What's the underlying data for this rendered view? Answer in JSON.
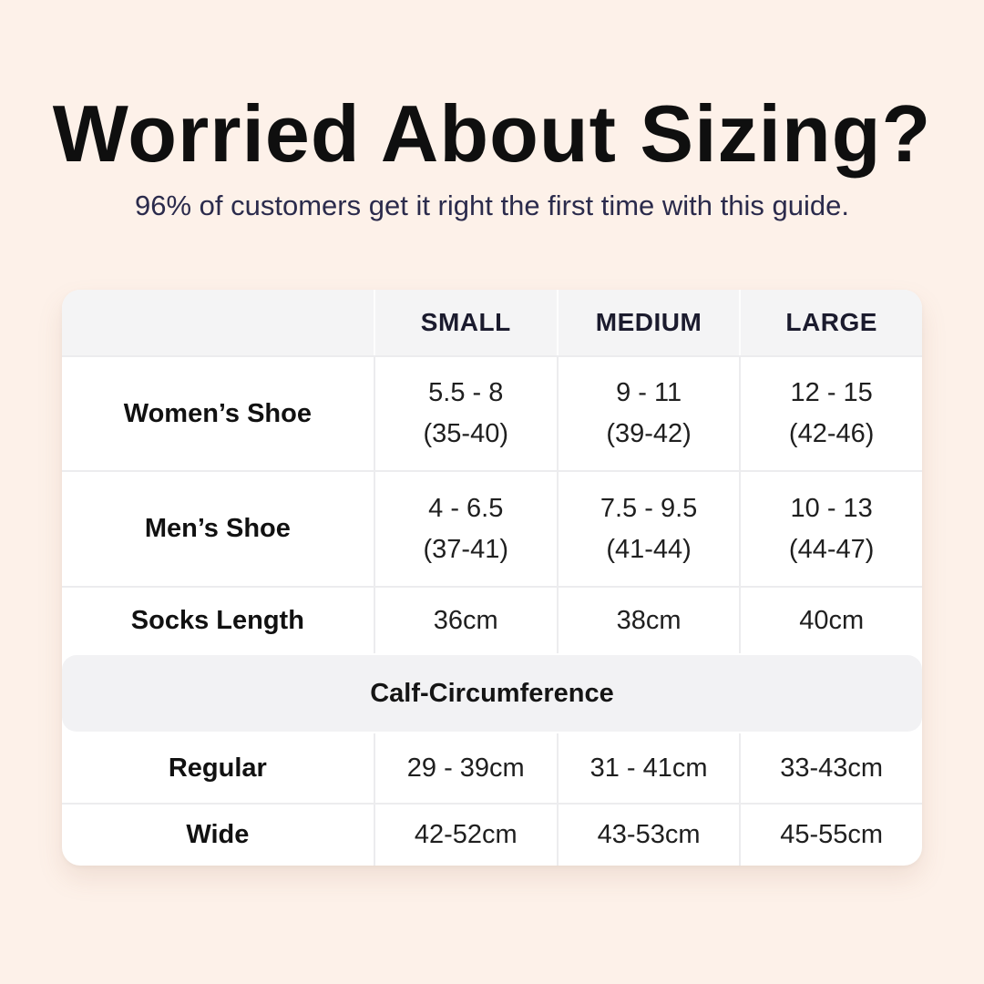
{
  "header": {
    "title": "Worried About Sizing?",
    "subtitle": "96% of customers get it right the first time with this guide."
  },
  "table": {
    "columns": [
      "",
      "SMALL",
      "MEDIUM",
      "LARGE"
    ],
    "rows": [
      {
        "label": "Women’s Shoe",
        "values": [
          "5.5 - 8\n(35-40)",
          "9 - 11\n(39-42)",
          "12 - 15\n(42-46)"
        ]
      },
      {
        "label": "Men’s Shoe",
        "values": [
          "4 - 6.5\n(37-41)",
          "7.5 - 9.5\n(41-44)",
          "10 - 13\n(44-47)"
        ]
      },
      {
        "label": "Socks Length",
        "values": [
          "36cm",
          "38cm",
          "40cm"
        ]
      }
    ],
    "section_label": "Calf-Circumference",
    "section_rows": [
      {
        "label": "Regular",
        "values": [
          "29 - 39cm",
          "31 - 41cm",
          "33-43cm"
        ]
      },
      {
        "label": "Wide",
        "values": [
          "42-52cm",
          "43-53cm",
          "45-55cm"
        ]
      }
    ]
  }
}
